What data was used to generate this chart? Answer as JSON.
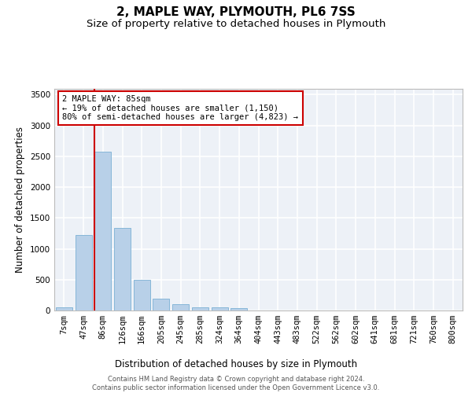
{
  "title": "2, MAPLE WAY, PLYMOUTH, PL6 7SS",
  "subtitle": "Size of property relative to detached houses in Plymouth",
  "xlabel": "Distribution of detached houses by size in Plymouth",
  "ylabel": "Number of detached properties",
  "bar_labels": [
    "7sqm",
    "47sqm",
    "86sqm",
    "126sqm",
    "166sqm",
    "205sqm",
    "245sqm",
    "285sqm",
    "324sqm",
    "364sqm",
    "404sqm",
    "443sqm",
    "483sqm",
    "522sqm",
    "562sqm",
    "602sqm",
    "641sqm",
    "681sqm",
    "721sqm",
    "760sqm",
    "800sqm"
  ],
  "bar_values": [
    50,
    1220,
    2580,
    1340,
    500,
    190,
    100,
    50,
    50,
    40,
    0,
    0,
    0,
    0,
    0,
    0,
    0,
    0,
    0,
    0,
    0
  ],
  "bar_color": "#b8d0e8",
  "bar_edge_color": "#7aafd4",
  "marker_bar_index": 2,
  "marker_line_color": "#cc0000",
  "annotation_line1": "2 MAPLE WAY: 85sqm",
  "annotation_line2": "← 19% of detached houses are smaller (1,150)",
  "annotation_line3": "80% of semi-detached houses are larger (4,823) →",
  "annotation_box_edgecolor": "#cc0000",
  "plot_bg_color": "#edf1f7",
  "grid_color": "#ffffff",
  "ylim_max": 3600,
  "yticks": [
    0,
    500,
    1000,
    1500,
    2000,
    2500,
    3000,
    3500
  ],
  "footer_line1": "Contains HM Land Registry data © Crown copyright and database right 2024.",
  "footer_line2": "Contains public sector information licensed under the Open Government Licence v3.0.",
  "title_fontsize": 11,
  "subtitle_fontsize": 9.5,
  "axis_label_fontsize": 8.5,
  "tick_fontsize": 7.5,
  "ylabel_fontsize": 8.5,
  "annotation_fontsize": 7.5,
  "footer_fontsize": 6.0
}
